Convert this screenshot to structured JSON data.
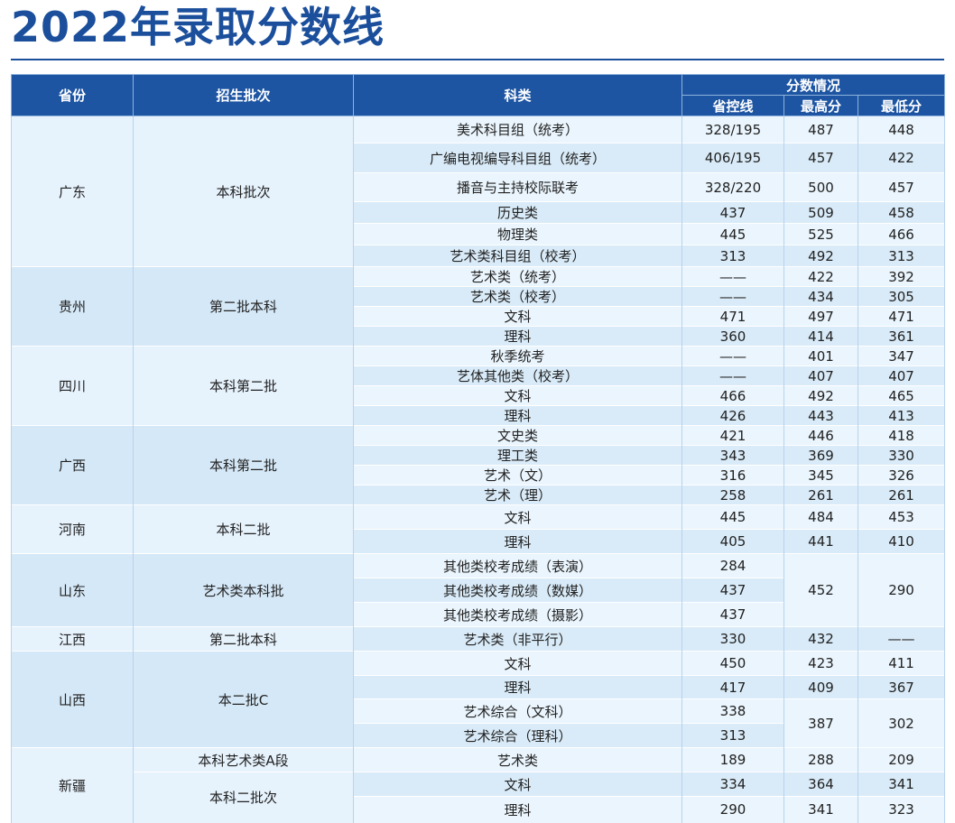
{
  "header": {
    "title": "2022年录取分数线"
  },
  "table": {
    "columns": {
      "province": "省份",
      "batch": "招生批次",
      "subject": "科类",
      "scores": "分数情况",
      "control": "省控线",
      "max": "最高分",
      "min": "最低分"
    },
    "groups": [
      {
        "province": "广东",
        "batches": [
          {
            "batch": "本科批次",
            "blocks": [
              {
                "rows": [
                  {
                    "subject": "美术科目组（统考）",
                    "control": "328/195"
                  }
                ],
                "max": 487,
                "min": 448
              },
              {
                "rows": [
                  {
                    "subject": "广编电视编导科目组（统考）",
                    "control": "406/195"
                  }
                ],
                "max": 457,
                "min": 422
              },
              {
                "rows": [
                  {
                    "subject": "播音与主持校际联考",
                    "control": "328/220"
                  }
                ],
                "max": 500,
                "min": 457
              },
              {
                "rows": [
                  {
                    "subject": "历史类",
                    "control": 437
                  }
                ],
                "max": 509,
                "min": 458
              },
              {
                "rows": [
                  {
                    "subject": "物理类",
                    "control": 445
                  }
                ],
                "max": 525,
                "min": 466
              },
              {
                "rows": [
                  {
                    "subject": "艺术类科目组（校考）",
                    "control": 313
                  }
                ],
                "max": 492,
                "min": 313
              }
            ]
          }
        ]
      },
      {
        "province": "贵州",
        "batches": [
          {
            "batch": "第二批本科",
            "blocks": [
              {
                "rows": [
                  {
                    "subject": "艺术类（统考）",
                    "control": "——"
                  }
                ],
                "max": 422,
                "min": 392
              },
              {
                "rows": [
                  {
                    "subject": "艺术类（校考）",
                    "control": "——"
                  }
                ],
                "max": 434,
                "min": 305
              },
              {
                "rows": [
                  {
                    "subject": "文科",
                    "control": 471
                  }
                ],
                "max": 497,
                "min": 471
              },
              {
                "rows": [
                  {
                    "subject": "理科",
                    "control": 360
                  }
                ],
                "max": 414,
                "min": 361
              }
            ]
          }
        ]
      },
      {
        "province": "四川",
        "batches": [
          {
            "batch": "本科第二批",
            "blocks": [
              {
                "rows": [
                  {
                    "subject": "秋季统考",
                    "control": "——"
                  }
                ],
                "max": 401,
                "min": 347
              },
              {
                "rows": [
                  {
                    "subject": "艺体其他类（校考）",
                    "control": "——"
                  }
                ],
                "max": 407,
                "min": 407
              },
              {
                "rows": [
                  {
                    "subject": "文科",
                    "control": 466
                  }
                ],
                "max": 492,
                "min": 465
              },
              {
                "rows": [
                  {
                    "subject": "理科",
                    "control": 426
                  }
                ],
                "max": 443,
                "min": 413
              }
            ]
          }
        ]
      },
      {
        "province": "广西",
        "batches": [
          {
            "batch": "本科第二批",
            "blocks": [
              {
                "rows": [
                  {
                    "subject": "文史类",
                    "control": 421
                  }
                ],
                "max": 446,
                "min": 418
              },
              {
                "rows": [
                  {
                    "subject": "理工类",
                    "control": 343
                  }
                ],
                "max": 369,
                "min": 330
              },
              {
                "rows": [
                  {
                    "subject": "艺术（文）",
                    "control": 316
                  }
                ],
                "max": 345,
                "min": 326
              },
              {
                "rows": [
                  {
                    "subject": "艺术（理）",
                    "control": 258
                  }
                ],
                "max": 261,
                "min": 261
              }
            ]
          }
        ]
      },
      {
        "province": "河南",
        "batches": [
          {
            "batch": "本科二批",
            "blocks": [
              {
                "rows": [
                  {
                    "subject": "文科",
                    "control": 445
                  }
                ],
                "max": 484,
                "min": 453
              },
              {
                "rows": [
                  {
                    "subject": "理科",
                    "control": 405
                  }
                ],
                "max": 441,
                "min": 410
              }
            ]
          }
        ]
      },
      {
        "province": "山东",
        "batches": [
          {
            "batch": "艺术类本科批",
            "blocks": [
              {
                "rows": [
                  {
                    "subject": "其他类校考成绩（表演）",
                    "control": 284
                  },
                  {
                    "subject": "其他类校考成绩（数媒）",
                    "control": 437
                  },
                  {
                    "subject": "其他类校考成绩（摄影）",
                    "control": 437
                  }
                ],
                "max": 452,
                "min": 290
              }
            ]
          }
        ]
      },
      {
        "province": "江西",
        "batches": [
          {
            "batch": "第二批本科",
            "blocks": [
              {
                "rows": [
                  {
                    "subject": "艺术类（非平行）",
                    "control": 330
                  }
                ],
                "max": 432,
                "min": "——"
              }
            ]
          }
        ]
      },
      {
        "province": "山西",
        "batches": [
          {
            "batch": "本二批C",
            "blocks": [
              {
                "rows": [
                  {
                    "subject": "文科",
                    "control": 450
                  }
                ],
                "max": 423,
                "min": 411
              },
              {
                "rows": [
                  {
                    "subject": "理科",
                    "control": 417
                  }
                ],
                "max": 409,
                "min": 367
              },
              {
                "rows": [
                  {
                    "subject": "艺术综合（文科）",
                    "control": 338
                  },
                  {
                    "subject": "艺术综合（理科）",
                    "control": 313
                  }
                ],
                "max": 387,
                "min": 302
              }
            ]
          }
        ]
      },
      {
        "province": "新疆",
        "batches": [
          {
            "batch": "本科艺术类A段",
            "blocks": [
              {
                "rows": [
                  {
                    "subject": "艺术类",
                    "control": 189
                  }
                ],
                "max": 288,
                "min": 209
              }
            ]
          },
          {
            "batch": "本科二批次",
            "blocks": [
              {
                "rows": [
                  {
                    "subject": "文科",
                    "control": 334
                  }
                ],
                "max": 364,
                "min": 341
              },
              {
                "rows": [
                  {
                    "subject": "理科",
                    "control": 290
                  }
                ],
                "max": 341,
                "min": 323
              }
            ]
          }
        ]
      }
    ]
  }
}
